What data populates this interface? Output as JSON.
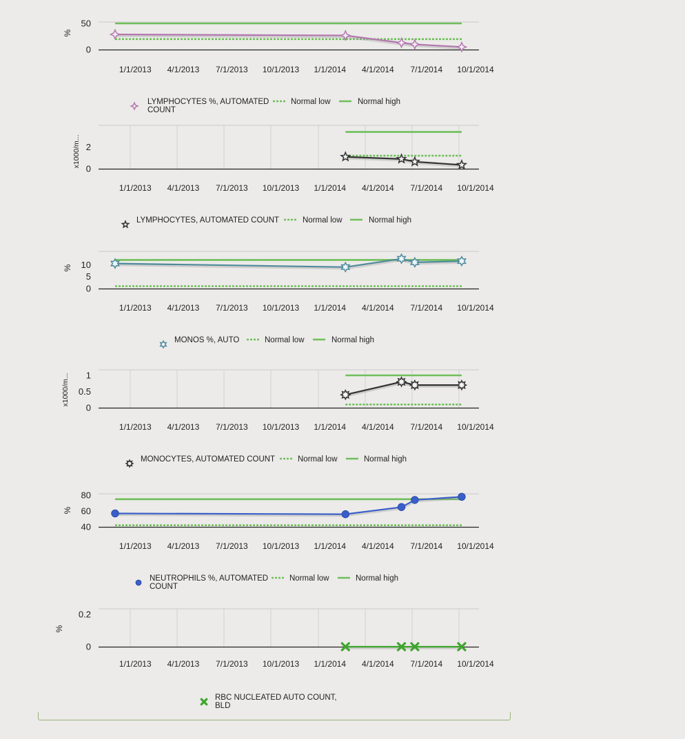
{
  "chart_data": [
    {
      "type": "line",
      "ylabel": "%",
      "ylim": [
        0,
        50
      ],
      "yticks": [
        "0",
        "50"
      ],
      "x_tick_labels": [
        "1/1/2013",
        "4/1/2013",
        "7/1/2013",
        "10/1/2013",
        "1/1/2014",
        "4/1/2014",
        "7/1/2014",
        "10/1/2014"
      ],
      "grid": false,
      "series": [
        {
          "name": "LYMPHOCYTES %, AUTOMATED COUNT",
          "color": "#b377b0",
          "marker": "diamond",
          "x": [
            "2012-12-20",
            "2014-02-25",
            "2014-06-10",
            "2014-07-05",
            "2014-10-01"
          ],
          "y": [
            29,
            27,
            13,
            10,
            5
          ]
        },
        {
          "name": "Normal low",
          "color": "#6fbe5a",
          "style": "dotted",
          "x": [
            "2012-12-20",
            "2014-10-01"
          ],
          "y": [
            20,
            20
          ]
        },
        {
          "name": "Normal high",
          "color": "#6fbe5a",
          "style": "solid",
          "x": [
            "2012-12-20",
            "2014-10-01"
          ],
          "y": [
            50,
            50
          ]
        }
      ]
    },
    {
      "type": "line",
      "ylabel": "x1000/m...",
      "ylim": [
        0,
        3.5
      ],
      "yticks": [
        "0",
        "2"
      ],
      "x_tick_labels": [
        "1/1/2013",
        "4/1/2013",
        "7/1/2013",
        "10/1/2013",
        "1/1/2014",
        "4/1/2014",
        "7/1/2014",
        "10/1/2014"
      ],
      "grid": true,
      "series": [
        {
          "name": "LYMPHOCYTES, AUTOMATED COUNT",
          "color": "#333333",
          "marker": "star",
          "x": [
            "2014-02-25",
            "2014-06-10",
            "2014-07-05",
            "2014-10-01"
          ],
          "y": [
            1.1,
            0.9,
            0.65,
            0.35
          ]
        },
        {
          "name": "Normal low",
          "color": "#6fbe5a",
          "style": "dotted",
          "x": [
            "2014-02-25",
            "2014-10-01"
          ],
          "y": [
            1.2,
            1.2
          ]
        },
        {
          "name": "Normal high",
          "color": "#6fbe5a",
          "style": "solid",
          "x": [
            "2014-02-25",
            "2014-10-01"
          ],
          "y": [
            3.4,
            3.4
          ]
        }
      ]
    },
    {
      "type": "line",
      "ylabel": "%",
      "ylim": [
        0,
        15
      ],
      "yticks": [
        "0",
        "5",
        "10"
      ],
      "x_tick_labels": [
        "1/1/2013",
        "4/1/2013",
        "7/1/2013",
        "10/1/2013",
        "1/1/2014",
        "4/1/2014",
        "7/1/2014",
        "10/1/2014"
      ],
      "grid": false,
      "series": [
        {
          "name": "MONOS %, AUTO",
          "color": "#4f8a9c",
          "marker": "star6",
          "x": [
            "2012-12-20",
            "2014-02-25",
            "2014-06-10",
            "2014-07-05",
            "2014-10-01"
          ],
          "y": [
            10.5,
            9,
            12.5,
            11,
            11.5
          ]
        },
        {
          "name": "Normal low",
          "color": "#6fbe5a",
          "style": "dotted",
          "x": [
            "2012-12-20",
            "2014-10-01"
          ],
          "y": [
            1,
            1
          ]
        },
        {
          "name": "Normal high",
          "color": "#6fbe5a",
          "style": "solid",
          "x": [
            "2012-12-20",
            "2014-10-01"
          ],
          "y": [
            12,
            12
          ]
        }
      ]
    },
    {
      "type": "line",
      "ylabel": "x1000/m...",
      "ylim": [
        0,
        1
      ],
      "yticks": [
        "0",
        "0.5",
        "1"
      ],
      "x_tick_labels": [
        "1/1/2013",
        "4/1/2013",
        "7/1/2013",
        "10/1/2013",
        "1/1/2014",
        "4/1/2014",
        "7/1/2014",
        "10/1/2014"
      ],
      "grid": true,
      "series": [
        {
          "name": "MONOCYTES, AUTOMATED COUNT",
          "color": "#333333",
          "marker": "star8",
          "x": [
            "2014-02-25",
            "2014-06-10",
            "2014-07-05",
            "2014-10-01"
          ],
          "y": [
            0.4,
            0.8,
            0.7,
            0.7
          ]
        },
        {
          "name": "Normal low",
          "color": "#6fbe5a",
          "style": "dotted",
          "x": [
            "2014-02-25",
            "2014-10-01"
          ],
          "y": [
            0.1,
            0.1
          ]
        },
        {
          "name": "Normal high",
          "color": "#6fbe5a",
          "style": "solid",
          "x": [
            "2014-02-25",
            "2014-10-01"
          ],
          "y": [
            1,
            1
          ]
        }
      ]
    },
    {
      "type": "line",
      "ylabel": "%",
      "ylim": [
        40,
        80
      ],
      "yticks": [
        "40",
        "60",
        "80"
      ],
      "x_tick_labels": [
        "1/1/2013",
        "4/1/2013",
        "7/1/2013",
        "10/1/2013",
        "1/1/2014",
        "4/1/2014",
        "7/1/2014",
        "10/1/2014"
      ],
      "grid": false,
      "series": [
        {
          "name": "NEUTROPHILS %, AUTOMATED COUNT",
          "color": "#3b5fc9",
          "marker": "circle",
          "x": [
            "2012-12-20",
            "2014-02-25",
            "2014-06-10",
            "2014-07-05",
            "2014-10-01"
          ],
          "y": [
            57,
            56,
            65,
            74,
            78
          ]
        },
        {
          "name": "Normal low",
          "color": "#6fbe5a",
          "style": "dotted",
          "x": [
            "2012-12-20",
            "2014-10-01"
          ],
          "y": [
            42,
            42
          ]
        },
        {
          "name": "Normal high",
          "color": "#6fbe5a",
          "style": "solid",
          "x": [
            "2012-12-20",
            "2014-10-01"
          ],
          "y": [
            75,
            75
          ]
        }
      ]
    },
    {
      "type": "line",
      "ylabel": "%",
      "ylim": [
        0,
        0.2
      ],
      "yticks": [
        "0",
        "0.2"
      ],
      "x_tick_labels": [
        "1/1/2013",
        "4/1/2013",
        "7/1/2013",
        "10/1/2013",
        "1/1/2014",
        "4/1/2014",
        "7/1/2014",
        "10/1/2014"
      ],
      "grid": true,
      "series": [
        {
          "name": "RBC NUCLEATED AUTO COUNT, BLD",
          "color": "#3ea52e",
          "marker": "x",
          "x": [
            "2014-02-25",
            "2014-06-10",
            "2014-07-05",
            "2014-10-01"
          ],
          "y": [
            0,
            0,
            0,
            0
          ]
        }
      ]
    }
  ]
}
